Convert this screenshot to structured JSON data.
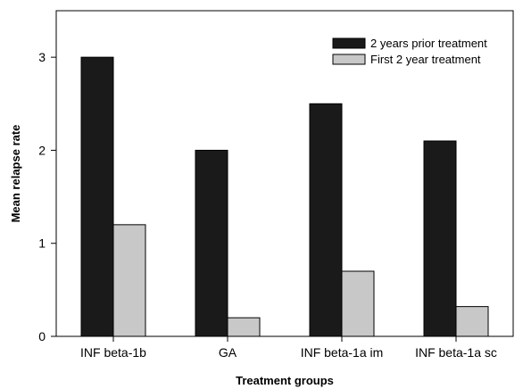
{
  "chart_data": {
    "type": "bar",
    "title": "",
    "xlabel": "Treatment groups",
    "ylabel": "Mean relapse rate",
    "categories": [
      "INF beta-1b",
      "GA",
      "INF beta-1a im",
      "INF beta-1a sc"
    ],
    "series": [
      {
        "name": "2 years prior treatment",
        "values": [
          3.0,
          2.0,
          2.5,
          2.1
        ],
        "color": "#1a1a1a"
      },
      {
        "name": "First 2 year treatment",
        "values": [
          1.2,
          0.2,
          0.7,
          0.32
        ],
        "color": "#c8c8c8"
      }
    ],
    "ylim": [
      0,
      3.5
    ],
    "yticks": [
      0,
      1,
      2,
      3
    ],
    "grid": false,
    "legend_position": "top-right"
  }
}
